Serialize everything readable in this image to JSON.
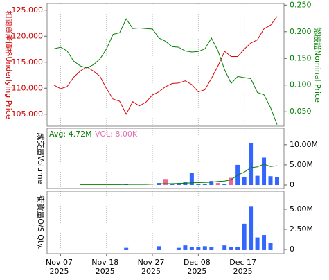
{
  "chart_data": [
    {
      "type": "line",
      "y_label": "相關資產價格Underlying Price",
      "y2_label": "認股證Nominal Price",
      "ylim": [
        102.7,
        126.3
      ],
      "yticks": [
        {
          "value": 125,
          "label": "125.000"
        },
        {
          "value": 120,
          "label": "120.000"
        },
        {
          "value": 115,
          "label": "115.000"
        },
        {
          "value": 110,
          "label": "110.000"
        },
        {
          "value": 105,
          "label": "105.000"
        }
      ],
      "y2lim": [
        0.023,
        0.253
      ],
      "y2ticks": [
        {
          "value": 0.25,
          "label": "0.250"
        },
        {
          "value": 0.2,
          "label": "0.200"
        },
        {
          "value": 0.15,
          "label": "0.150"
        },
        {
          "value": 0.1,
          "label": "0.100"
        },
        {
          "value": 0.05,
          "label": "0.050"
        }
      ],
      "y_color": "#cc0000",
      "y2_color": "#008000",
      "series": [
        {
          "color": "#dd0000",
          "values": [
            110.6,
            109.9,
            110.3,
            112.1,
            113.3,
            114.1,
            113.3,
            112.3,
            109.9,
            107.9,
            107.5,
            105.0,
            107.4,
            106.6,
            107.3,
            108.7,
            109.3,
            110.3,
            110.9,
            111.0,
            111.4,
            110.7,
            109.3,
            109.7,
            111.9,
            114.3,
            117.1,
            116.1,
            116.1,
            117.5,
            118.7,
            119.3,
            121.4,
            122.1,
            123.8
          ]
        },
        {
          "color": "#008000",
          "axis": "y2",
          "values": [
            0.168,
            0.171,
            0.164,
            0.145,
            0.136,
            0.132,
            0.138,
            0.149,
            0.168,
            0.195,
            0.198,
            0.224,
            0.206,
            0.207,
            0.206,
            0.205,
            0.188,
            0.182,
            0.172,
            0.171,
            0.164,
            0.162,
            0.163,
            0.168,
            0.188,
            0.164,
            0.129,
            0.103,
            0.116,
            0.114,
            0.112,
            0.086,
            0.082,
            0.058,
            0.026
          ]
        }
      ]
    },
    {
      "type": "bar",
      "y_label": "成交量Volume",
      "avg_label": "Avg: 4.72M",
      "vol_label": "VOL: 8.00K",
      "avg_color": "#008000",
      "vol_color": "#e070b0",
      "ylim": [
        -860000,
        14100000
      ],
      "yticks": [
        {
          "value": 10000000,
          "label": "10.00M"
        },
        {
          "value": 5000000,
          "label": "5.00M"
        },
        0
      ],
      "values": [
        null,
        null,
        null,
        null,
        null,
        null,
        null,
        null,
        null,
        null,
        null,
        100000,
        null,
        null,
        null,
        null,
        500000,
        1500000,
        200000,
        500000,
        800000,
        3000000,
        300000,
        200000,
        1000000,
        500000,
        300000,
        1800000,
        5000000,
        2000000,
        10500000,
        2300000,
        6800000,
        2200000,
        2000000
      ],
      "bar_colors": [
        "#3366ff",
        "#3366ff",
        "#3366ff",
        "#3366ff",
        "#3366ff",
        "#3366ff",
        "#3366ff",
        "#3366ff",
        "#3366ff",
        "#3366ff",
        "#3366ff",
        "#3366ff",
        "#3366ff",
        "#3366ff",
        "#3366ff",
        "#3366ff",
        "#3366ff",
        "#ee6699",
        "#3366ff",
        "#3366ff",
        "#3366ff",
        "#3366ff",
        "#3366ff",
        "#3366ff",
        "#3366ff",
        "#ee6699",
        "#3366ff",
        "#ee6699",
        "#3366ff",
        "#3366ff",
        "#3366ff",
        "#3366ff",
        "#3366ff",
        "#3366ff",
        "#3366ff"
      ],
      "avg_values": [
        null,
        null,
        null,
        null,
        100000,
        100000,
        100000,
        100000,
        100000,
        100000,
        100000,
        150000,
        150000,
        150000,
        150000,
        200000,
        300000,
        350000,
        350000,
        400000,
        450000,
        550000,
        600000,
        650000,
        700000,
        900000,
        1000000,
        1300000,
        2500000,
        3200000,
        4300000,
        4500000,
        5200000,
        4600000,
        4800000
      ]
    },
    {
      "type": "bar",
      "y_label": "街貨量O/S Qty.",
      "color": "#3366ff",
      "ylim": [
        -520000,
        7240000
      ],
      "yticks": [
        {
          "value": 5000000,
          "label": "5.00M"
        },
        {
          "value": 2500000,
          "label": "2.50M"
        },
        0
      ],
      "values": [
        null,
        null,
        null,
        null,
        null,
        null,
        null,
        null,
        null,
        null,
        null,
        200000,
        null,
        null,
        null,
        null,
        400000,
        null,
        null,
        200000,
        500000,
        300000,
        300000,
        400000,
        300000,
        null,
        500000,
        300000,
        300000,
        3200000,
        5400000,
        1500000,
        1800000,
        800000,
        null
      ],
      "categories": [
        null,
        {
          "date": "Nov 07",
          "year": "2025"
        },
        null,
        null,
        null,
        null,
        null,
        null,
        {
          "date": "Nov 18",
          "year": "2025"
        },
        null,
        null,
        null,
        null,
        null,
        null,
        {
          "date": "Nov 27",
          "year": "2025"
        },
        null,
        null,
        null,
        null,
        null,
        null,
        {
          "date": "Dec 08",
          "year": "2025"
        },
        null,
        null,
        null,
        null,
        null,
        null,
        {
          "date": "Dec 17",
          "year": "2025"
        },
        null,
        null,
        null,
        null,
        null
      ]
    }
  ]
}
